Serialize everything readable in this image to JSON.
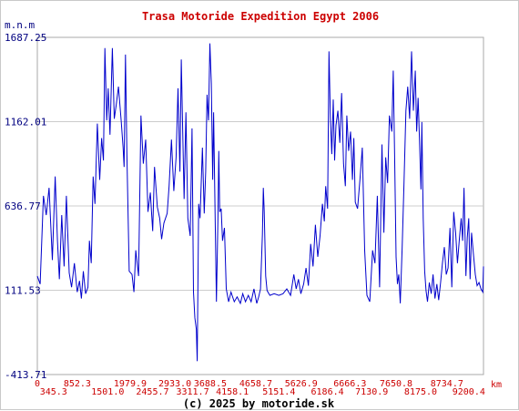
{
  "chart_data": {
    "type": "line",
    "title": "Trasa Motoride Expedition Egypt 2006",
    "ylabel": "m.n.m",
    "xlabel": "km",
    "footer": "(c) 2025 by motoride.sk",
    "ylim": [
      -413.71,
      1687.25
    ],
    "xlim": [
      0,
      9515
    ],
    "grid": true,
    "y_ticks": [
      "1687.25",
      "1162.01",
      "636.77",
      "111.53",
      "-413.71"
    ],
    "y_tick_values": [
      1687.25,
      1162.01,
      636.77,
      111.53,
      -413.71
    ],
    "x_ticks_upper": [
      "0",
      "852.3",
      "1979.9",
      "2933.0",
      "3688.5",
      "4658.7",
      "5626.9",
      "6666.3",
      "7650.8",
      "8734.7"
    ],
    "x_tick_values_upper": [
      0,
      852.3,
      1979.9,
      2933.0,
      3688.5,
      4658.7,
      5626.9,
      6666.3,
      7650.8,
      8734.7
    ],
    "x_ticks_lower": [
      "345.3",
      "1501.0",
      "2455.7",
      "3311.7",
      "4158.1",
      "5151.4",
      "6186.4",
      "7130.9",
      "8175.0",
      "9200.4"
    ],
    "x_tick_values_lower": [
      345.3,
      1501.0,
      2455.7,
      3311.7,
      4158.1,
      5151.4,
      6186.4,
      7130.9,
      8175.0,
      9200.4
    ],
    "series": [
      {
        "color": "#0000cc",
        "points": [
          [
            0,
            200
          ],
          [
            60,
            150
          ],
          [
            130,
            700
          ],
          [
            190,
            580
          ],
          [
            250,
            750
          ],
          [
            320,
            300
          ],
          [
            380,
            820
          ],
          [
            430,
            420
          ],
          [
            470,
            180
          ],
          [
            520,
            580
          ],
          [
            570,
            260
          ],
          [
            620,
            700
          ],
          [
            680,
            220
          ],
          [
            730,
            130
          ],
          [
            790,
            280
          ],
          [
            850,
            100
          ],
          [
            900,
            170
          ],
          [
            940,
            60
          ],
          [
            980,
            230
          ],
          [
            1030,
            90
          ],
          [
            1080,
            130
          ],
          [
            1110,
            420
          ],
          [
            1150,
            280
          ],
          [
            1190,
            820
          ],
          [
            1230,
            650
          ],
          [
            1280,
            1150
          ],
          [
            1330,
            800
          ],
          [
            1370,
            1060
          ],
          [
            1410,
            920
          ],
          [
            1440,
            1620
          ],
          [
            1480,
            1170
          ],
          [
            1510,
            1370
          ],
          [
            1550,
            1080
          ],
          [
            1600,
            1620
          ],
          [
            1640,
            1180
          ],
          [
            1680,
            1260
          ],
          [
            1730,
            1380
          ],
          [
            1790,
            1160
          ],
          [
            1830,
            1000
          ],
          [
            1850,
            880
          ],
          [
            1880,
            1580
          ],
          [
            1910,
            950
          ],
          [
            1960,
            230
          ],
          [
            2020,
            210
          ],
          [
            2060,
            100
          ],
          [
            2100,
            360
          ],
          [
            2160,
            200
          ],
          [
            2210,
            1200
          ],
          [
            2260,
            900
          ],
          [
            2310,
            1050
          ],
          [
            2360,
            600
          ],
          [
            2410,
            720
          ],
          [
            2460,
            480
          ],
          [
            2500,
            880
          ],
          [
            2560,
            630
          ],
          [
            2610,
            560
          ],
          [
            2650,
            430
          ],
          [
            2700,
            530
          ],
          [
            2770,
            590
          ],
          [
            2810,
            760
          ],
          [
            2860,
            1050
          ],
          [
            2910,
            730
          ],
          [
            2960,
            940
          ],
          [
            3000,
            1370
          ],
          [
            3040,
            850
          ],
          [
            3070,
            1550
          ],
          [
            3100,
            1120
          ],
          [
            3130,
            680
          ],
          [
            3170,
            1220
          ],
          [
            3210,
            560
          ],
          [
            3260,
            450
          ],
          [
            3300,
            1120
          ],
          [
            3330,
            100
          ],
          [
            3360,
            -60
          ],
          [
            3390,
            -130
          ],
          [
            3410,
            -330
          ],
          [
            3440,
            650
          ],
          [
            3470,
            560
          ],
          [
            3520,
            1000
          ],
          [
            3560,
            590
          ],
          [
            3590,
            850
          ],
          [
            3620,
            1330
          ],
          [
            3650,
            1170
          ],
          [
            3680,
            1650
          ],
          [
            3710,
            1400
          ],
          [
            3740,
            800
          ],
          [
            3760,
            1220
          ],
          [
            3790,
            600
          ],
          [
            3820,
            40
          ],
          [
            3850,
            540
          ],
          [
            3870,
            980
          ],
          [
            3890,
            600
          ],
          [
            3920,
            620
          ],
          [
            3950,
            420
          ],
          [
            3990,
            500
          ],
          [
            4030,
            120
          ],
          [
            4080,
            40
          ],
          [
            4130,
            100
          ],
          [
            4200,
            40
          ],
          [
            4260,
            70
          ],
          [
            4330,
            30
          ],
          [
            4380,
            90
          ],
          [
            4440,
            40
          ],
          [
            4500,
            80
          ],
          [
            4560,
            40
          ],
          [
            4620,
            120
          ],
          [
            4680,
            30
          ],
          [
            4720,
            70
          ],
          [
            4760,
            120
          ],
          [
            4800,
            460
          ],
          [
            4820,
            750
          ],
          [
            4840,
            600
          ],
          [
            4870,
            200
          ],
          [
            4900,
            110
          ],
          [
            4960,
            80
          ],
          [
            5050,
            90
          ],
          [
            5150,
            80
          ],
          [
            5240,
            90
          ],
          [
            5320,
            120
          ],
          [
            5400,
            80
          ],
          [
            5470,
            210
          ],
          [
            5520,
            120
          ],
          [
            5570,
            180
          ],
          [
            5620,
            90
          ],
          [
            5680,
            150
          ],
          [
            5730,
            250
          ],
          [
            5780,
            140
          ],
          [
            5830,
            400
          ],
          [
            5880,
            260
          ],
          [
            5930,
            520
          ],
          [
            5980,
            320
          ],
          [
            6030,
            450
          ],
          [
            6080,
            650
          ],
          [
            6120,
            540
          ],
          [
            6150,
            760
          ],
          [
            6190,
            620
          ],
          [
            6220,
            1600
          ],
          [
            6250,
            1180
          ],
          [
            6280,
            960
          ],
          [
            6310,
            1300
          ],
          [
            6340,
            920
          ],
          [
            6370,
            1140
          ],
          [
            6410,
            1230
          ],
          [
            6450,
            1030
          ],
          [
            6490,
            1340
          ],
          [
            6530,
            900
          ],
          [
            6570,
            760
          ],
          [
            6600,
            1200
          ],
          [
            6640,
            980
          ],
          [
            6680,
            1100
          ],
          [
            6720,
            800
          ],
          [
            6750,
            1060
          ],
          [
            6780,
            660
          ],
          [
            6830,
            620
          ],
          [
            6880,
            800
          ],
          [
            6930,
            1000
          ],
          [
            6980,
            360
          ],
          [
            7030,
            80
          ],
          [
            7090,
            40
          ],
          [
            7150,
            360
          ],
          [
            7200,
            280
          ],
          [
            7250,
            700
          ],
          [
            7300,
            130
          ],
          [
            7350,
            1020
          ],
          [
            7390,
            470
          ],
          [
            7430,
            940
          ],
          [
            7470,
            780
          ],
          [
            7510,
            1200
          ],
          [
            7560,
            1100
          ],
          [
            7590,
            1480
          ],
          [
            7620,
            950
          ],
          [
            7650,
            320
          ],
          [
            7680,
            150
          ],
          [
            7710,
            210
          ],
          [
            7740,
            30
          ],
          [
            7780,
            380
          ],
          [
            7820,
            780
          ],
          [
            7860,
            1230
          ],
          [
            7900,
            1380
          ],
          [
            7940,
            1180
          ],
          [
            7980,
            1600
          ],
          [
            8020,
            1230
          ],
          [
            8060,
            1480
          ],
          [
            8090,
            1100
          ],
          [
            8120,
            1310
          ],
          [
            8150,
            1050
          ],
          [
            8180,
            740
          ],
          [
            8200,
            1160
          ],
          [
            8230,
            560
          ],
          [
            8260,
            230
          ],
          [
            8290,
            110
          ],
          [
            8320,
            40
          ],
          [
            8360,
            160
          ],
          [
            8400,
            90
          ],
          [
            8440,
            210
          ],
          [
            8480,
            60
          ],
          [
            8520,
            150
          ],
          [
            8560,
            50
          ],
          [
            8600,
            160
          ],
          [
            8640,
            280
          ],
          [
            8680,
            380
          ],
          [
            8720,
            210
          ],
          [
            8760,
            250
          ],
          [
            8800,
            500
          ],
          [
            8840,
            130
          ],
          [
            8880,
            600
          ],
          [
            8920,
            470
          ],
          [
            8960,
            280
          ],
          [
            9000,
            430
          ],
          [
            9040,
            560
          ],
          [
            9070,
            420
          ],
          [
            9100,
            750
          ],
          [
            9140,
            200
          ],
          [
            9170,
            440
          ],
          [
            9200,
            560
          ],
          [
            9230,
            180
          ],
          [
            9260,
            470
          ],
          [
            9300,
            340
          ],
          [
            9340,
            210
          ],
          [
            9380,
            140
          ],
          [
            9420,
            160
          ],
          [
            9460,
            120
          ],
          [
            9500,
            100
          ],
          [
            9515,
            260
          ]
        ]
      }
    ]
  }
}
